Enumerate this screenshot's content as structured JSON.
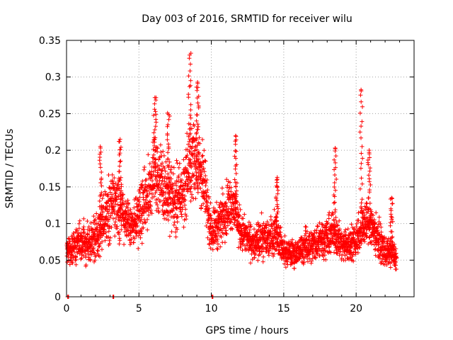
{
  "chart_data": {
    "type": "scatter",
    "title": "Day 003 of 2016, SRMTID for receiver wilu",
    "xlabel": "GPS time / hours",
    "ylabel": "SRMTID / TECUs",
    "xlim": [
      0,
      24
    ],
    "ylim": [
      0,
      0.35
    ],
    "grid": true,
    "marker": "+",
    "color": "#ff0000",
    "x_ticks": [
      0,
      5,
      10,
      15,
      20
    ],
    "x_tick_labels": [
      "0",
      "5",
      "10",
      "15",
      "20"
    ],
    "y_ticks": [
      0,
      0.05,
      0.1,
      0.15,
      0.2,
      0.25,
      0.3,
      0.35
    ],
    "y_tick_labels": [
      "0",
      "0.05",
      "0.1",
      "0.15",
      "0.2",
      "0.25",
      "0.3",
      "0.35"
    ],
    "envelope": {
      "note": "dense satellite tracks; median and spread per time bin, plus notable peaks",
      "x": [
        0.0,
        0.5,
        1.0,
        1.5,
        2.0,
        2.5,
        3.0,
        3.5,
        4.0,
        4.5,
        5.0,
        5.5,
        6.0,
        6.5,
        7.0,
        7.5,
        8.0,
        8.5,
        9.0,
        9.5,
        10.0,
        10.5,
        11.0,
        11.5,
        12.0,
        12.5,
        13.0,
        13.5,
        14.0,
        14.5,
        15.0,
        15.5,
        16.0,
        16.5,
        17.0,
        17.5,
        18.0,
        18.5,
        19.0,
        19.5,
        20.0,
        20.5,
        21.0,
        21.5,
        22.0,
        22.5,
        22.8
      ],
      "median": [
        0.06,
        0.07,
        0.075,
        0.07,
        0.08,
        0.1,
        0.12,
        0.13,
        0.11,
        0.1,
        0.11,
        0.13,
        0.17,
        0.16,
        0.14,
        0.13,
        0.14,
        0.18,
        0.19,
        0.15,
        0.09,
        0.1,
        0.12,
        0.13,
        0.09,
        0.08,
        0.07,
        0.08,
        0.08,
        0.09,
        0.06,
        0.06,
        0.06,
        0.07,
        0.07,
        0.08,
        0.08,
        0.09,
        0.07,
        0.07,
        0.08,
        0.1,
        0.1,
        0.08,
        0.06,
        0.06,
        0.05
      ],
      "spread": [
        0.02,
        0.025,
        0.03,
        0.03,
        0.035,
        0.04,
        0.045,
        0.05,
        0.04,
        0.035,
        0.04,
        0.05,
        0.05,
        0.05,
        0.05,
        0.05,
        0.05,
        0.06,
        0.06,
        0.05,
        0.03,
        0.035,
        0.04,
        0.04,
        0.03,
        0.025,
        0.025,
        0.03,
        0.03,
        0.03,
        0.02,
        0.02,
        0.02,
        0.025,
        0.025,
        0.03,
        0.03,
        0.03,
        0.025,
        0.025,
        0.03,
        0.035,
        0.035,
        0.03,
        0.02,
        0.02,
        0.02
      ],
      "peaks": [
        {
          "x": 2.35,
          "y": 0.203
        },
        {
          "x": 3.7,
          "y": 0.215
        },
        {
          "x": 6.1,
          "y": 0.272
        },
        {
          "x": 7.05,
          "y": 0.249
        },
        {
          "x": 8.5,
          "y": 0.33
        },
        {
          "x": 9.05,
          "y": 0.293
        },
        {
          "x": 11.7,
          "y": 0.219
        },
        {
          "x": 14.55,
          "y": 0.163
        },
        {
          "x": 18.55,
          "y": 0.203
        },
        {
          "x": 20.35,
          "y": 0.281
        },
        {
          "x": 20.9,
          "y": 0.2
        },
        {
          "x": 22.45,
          "y": 0.135
        }
      ],
      "zero_points": [
        {
          "x": 0.08,
          "y": 0.0
        },
        {
          "x": 3.2,
          "y": 0.0
        },
        {
          "x": 10.05,
          "y": 0.0
        }
      ]
    }
  }
}
